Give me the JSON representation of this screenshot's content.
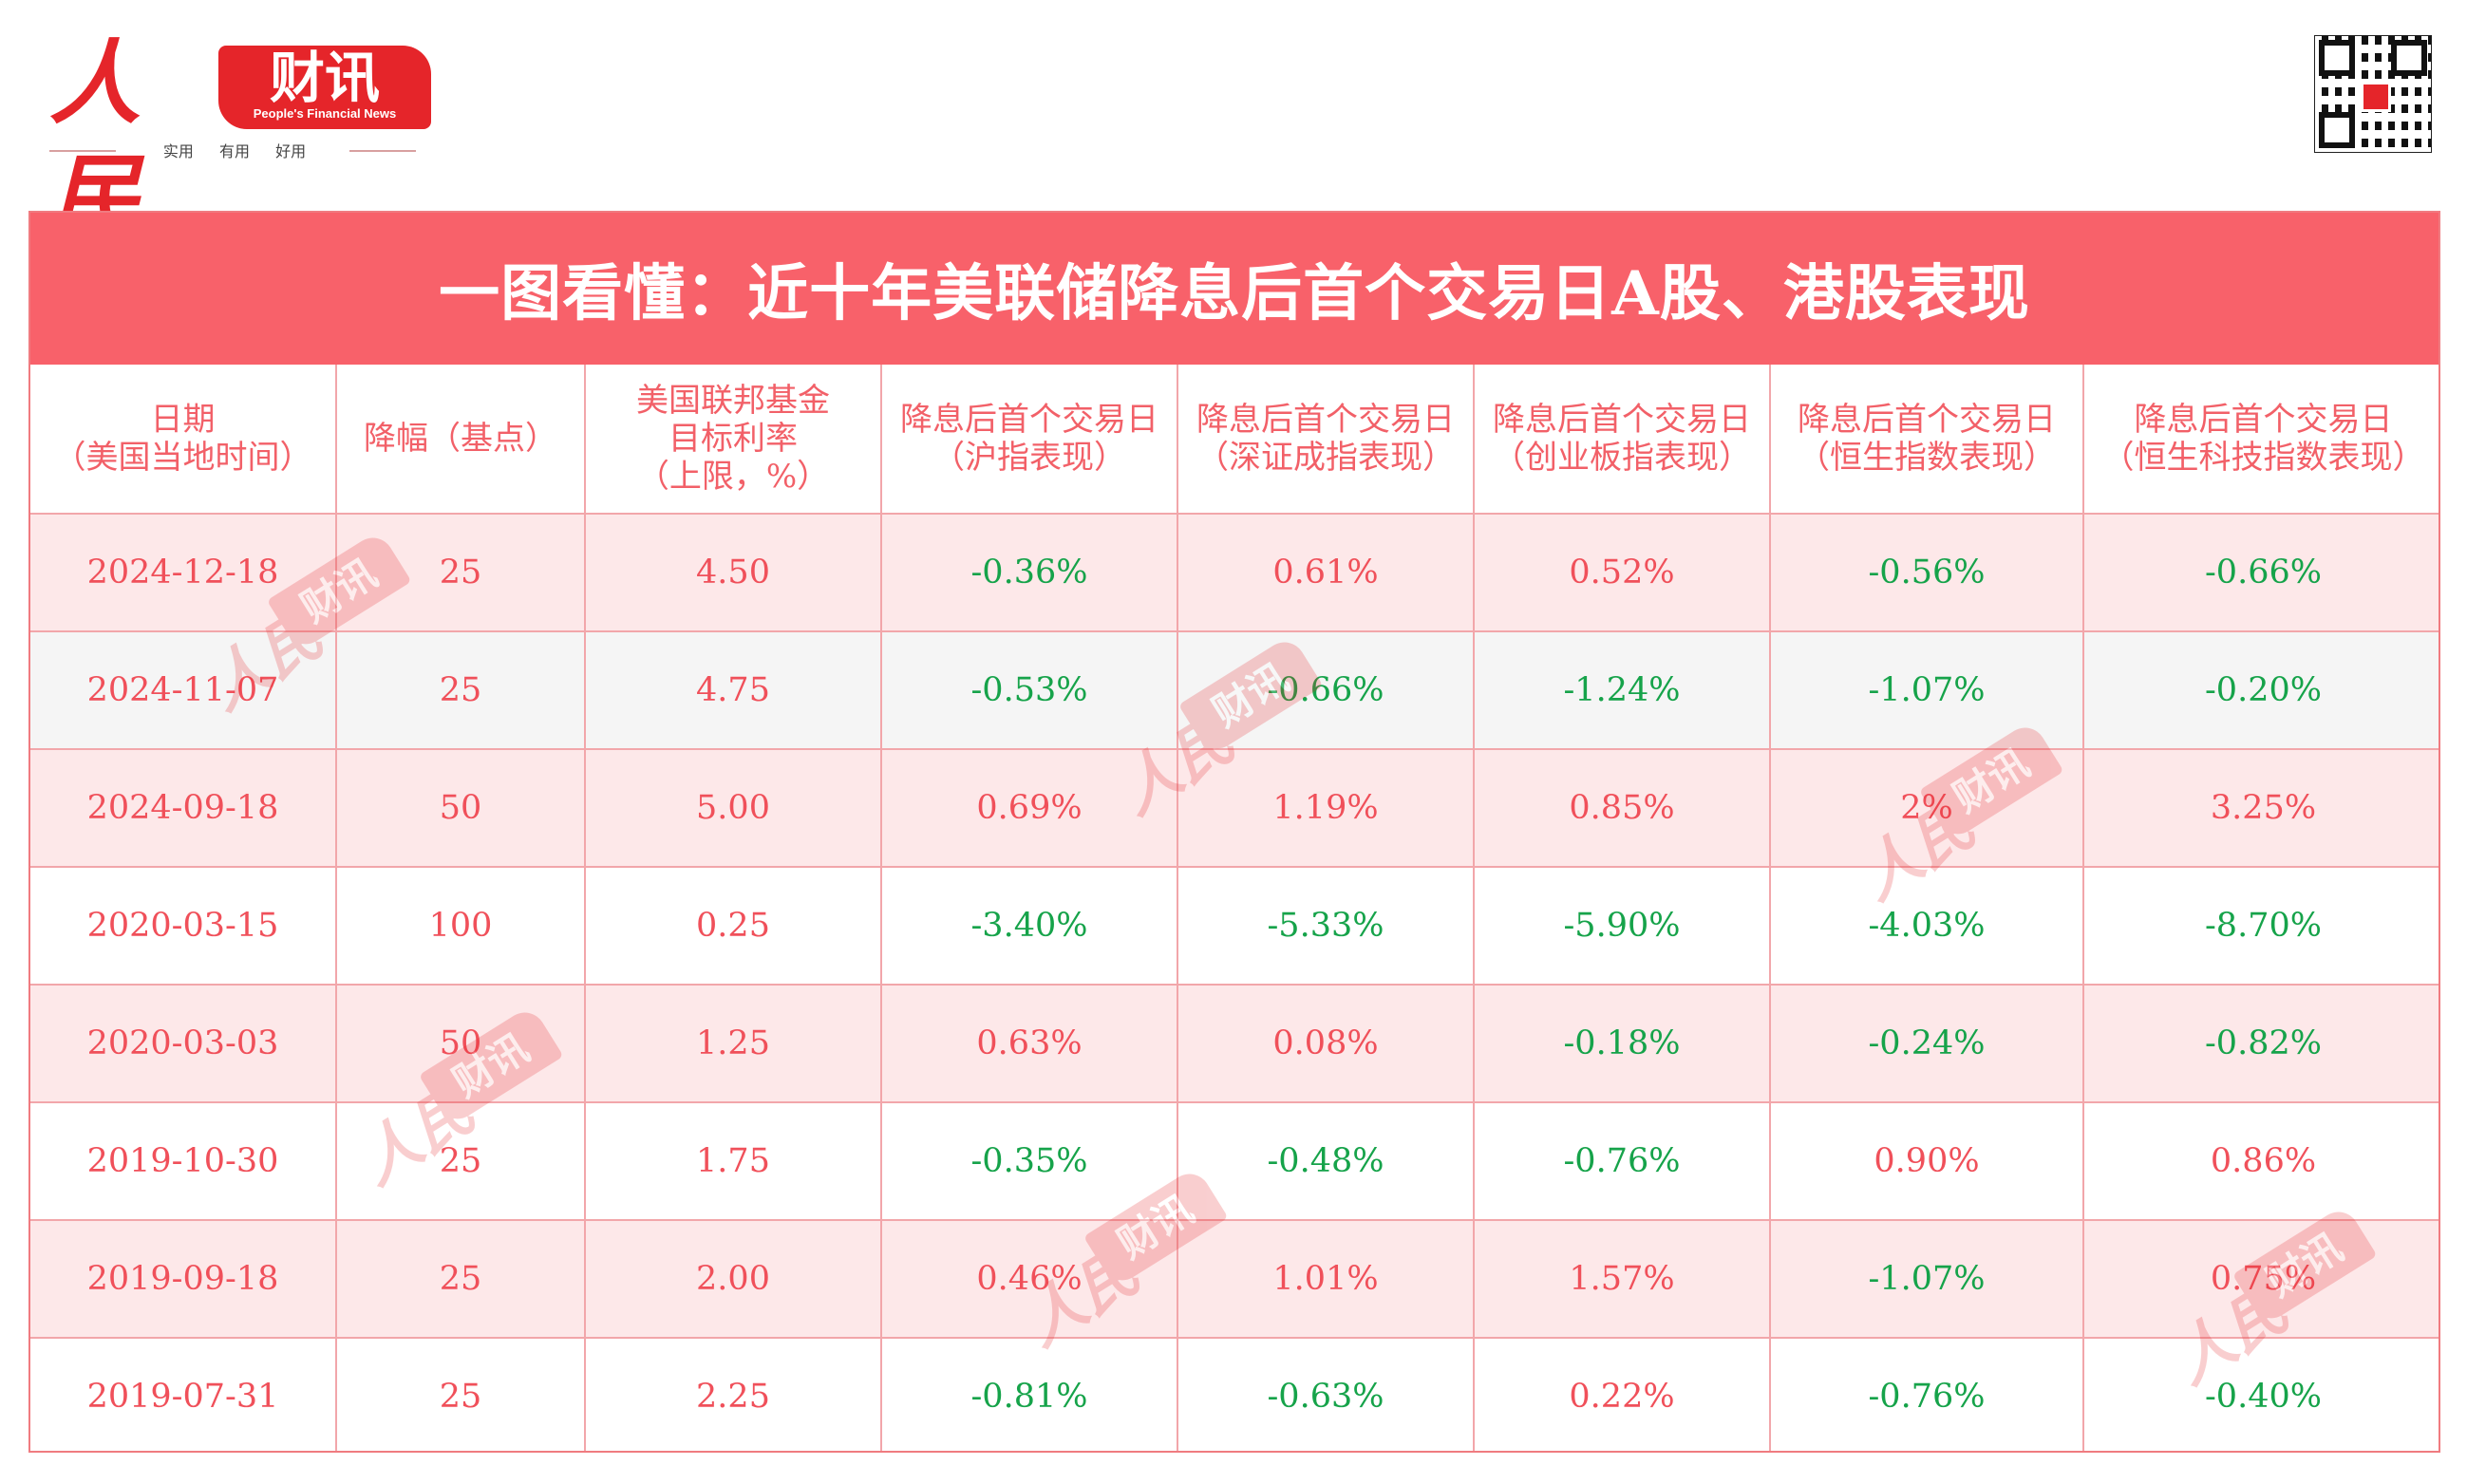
{
  "brand": {
    "ren": "人民",
    "caixun": "财讯",
    "english": "People's Financial News",
    "slogan": "实用 有用 好用",
    "brand_color": "#e5252a"
  },
  "qr_code": {
    "icon": "qr-code-icon"
  },
  "title": "一图看懂：近十年美联储降息后首个交易日A股、港股表现",
  "colors": {
    "title_bg": "#f8616a",
    "header_text": "#f26068",
    "positive": "#f0505a",
    "negative": "#16a34a",
    "row_pink": "#fde8e9",
    "row_grey": "#f5f5f5"
  },
  "table": {
    "headers": [
      [
        "日期",
        "（美国当地时间）"
      ],
      [
        "降幅（基点）"
      ],
      [
        "美国联邦基金",
        "目标利率",
        "（上限，%）"
      ],
      [
        "降息后首个交易日",
        "（沪指表现）"
      ],
      [
        "降息后首个交易日",
        "（深证成指表现）"
      ],
      [
        "降息后首个交易日",
        "（创业板指表现）"
      ],
      [
        "降息后首个交易日",
        "（恒生指数表现）"
      ],
      [
        "降息后首个交易日",
        "（恒生科技指数表现）"
      ]
    ],
    "rows": [
      [
        "2024-12-18",
        "25",
        "4.50",
        "-0.36%",
        "0.61%",
        "0.52%",
        "-0.56%",
        "-0.66%"
      ],
      [
        "2024-11-07",
        "25",
        "4.75",
        "-0.53%",
        "-0.66%",
        "-1.24%",
        "-1.07%",
        "-0.20%"
      ],
      [
        "2024-09-18",
        "50",
        "5.00",
        "0.69%",
        "1.19%",
        "0.85%",
        "2%",
        "3.25%"
      ],
      [
        "2020-03-15",
        "100",
        "0.25",
        "-3.40%",
        "-5.33%",
        "-5.90%",
        "-4.03%",
        "-8.70%"
      ],
      [
        "2020-03-03",
        "50",
        "1.25",
        "0.63%",
        "0.08%",
        "-0.18%",
        "-0.24%",
        "-0.82%"
      ],
      [
        "2019-10-30",
        "25",
        "1.75",
        "-0.35%",
        "-0.48%",
        "-0.76%",
        "0.90%",
        "0.86%"
      ],
      [
        "2019-09-18",
        "25",
        "2.00",
        "0.46%",
        "1.01%",
        "1.57%",
        "-1.07%",
        "0.75%"
      ],
      [
        "2019-07-31",
        "25",
        "2.25",
        "-0.81%",
        "-0.63%",
        "0.22%",
        "-0.76%",
        "-0.40%"
      ]
    ]
  }
}
